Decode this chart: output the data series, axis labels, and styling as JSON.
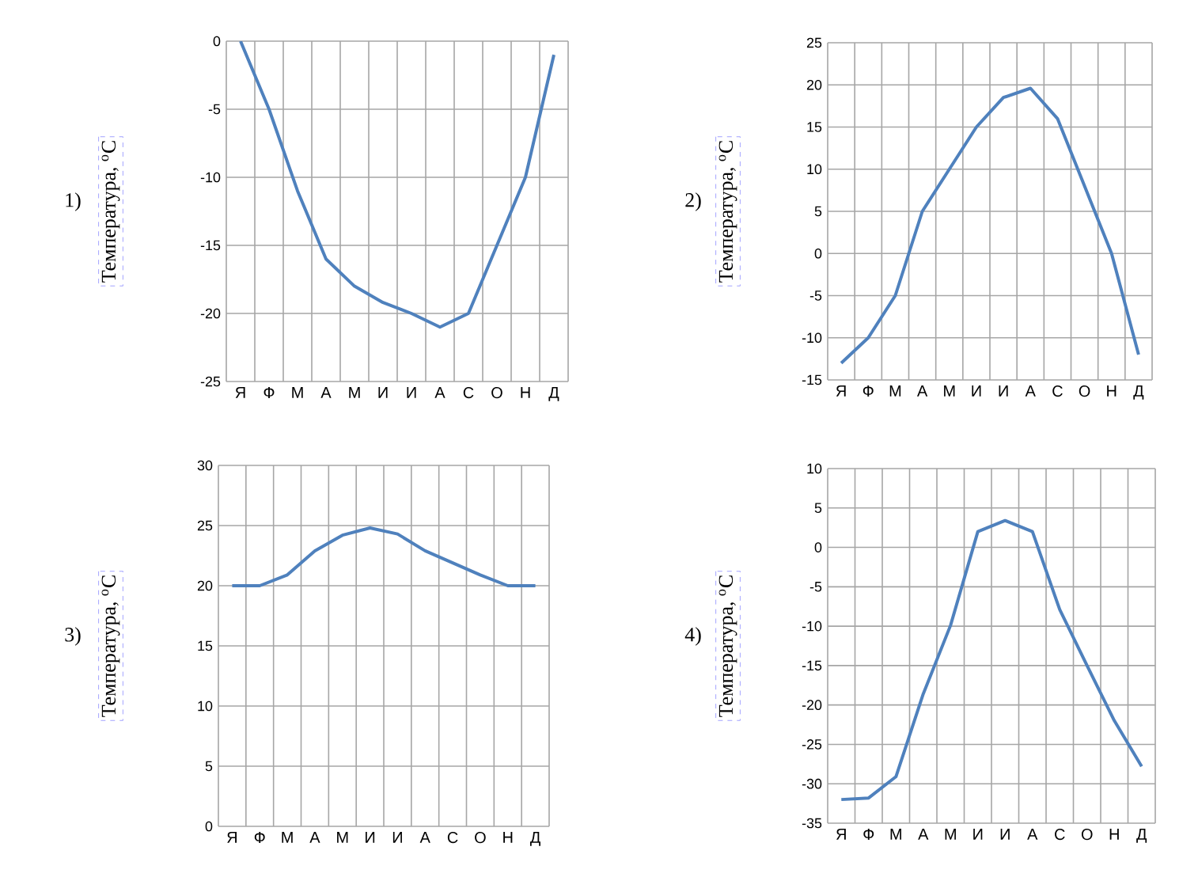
{
  "chart_data": [
    {
      "type": "line",
      "title": "1)",
      "ylabel": "Температура, $^{о}$С",
      "categories": [
        "Я",
        "Ф",
        "М",
        "А",
        "М",
        "И",
        "И",
        "А",
        "С",
        "О",
        "Н",
        "Д"
      ],
      "values": [
        0,
        -5,
        -11,
        -16,
        -18,
        -19.2,
        -20,
        -21,
        -20,
        -15,
        -10,
        -1
      ],
      "color": "#4f81bd",
      "ylim": [
        -25,
        0
      ],
      "yticks": [
        -25,
        -20,
        -15,
        -10,
        -5,
        0
      ],
      "grid": true
    },
    {
      "type": "line",
      "title": "2)",
      "ylabel": "Температура, $^{о}$С",
      "categories": [
        "Я",
        "Ф",
        "М",
        "А",
        "М",
        "И",
        "И",
        "А",
        "С",
        "О",
        "Н",
        "Д"
      ],
      "values": [
        -13,
        -10,
        -5,
        5,
        10,
        15,
        18.5,
        19.6,
        16,
        8,
        0,
        -12
      ],
      "color": "#4f81bd",
      "ylim": [
        -15,
        25
      ],
      "yticks": [
        -15,
        -10,
        -5,
        0,
        5,
        10,
        15,
        20,
        25
      ],
      "grid": true
    },
    {
      "type": "line",
      "title": "3)",
      "ylabel": "Температура, $^{о}$С",
      "categories": [
        "Я",
        "Ф",
        "М",
        "А",
        "М",
        "И",
        "И",
        "А",
        "С",
        "О",
        "Н",
        "Д"
      ],
      "values": [
        20,
        20,
        20.9,
        22.9,
        24.2,
        24.8,
        24.3,
        22.9,
        21.9,
        20.9,
        20,
        20
      ],
      "color": "#4f81bd",
      "ylim": [
        0,
        30
      ],
      "yticks": [
        0,
        5,
        10,
        15,
        20,
        25,
        30
      ],
      "grid": true
    },
    {
      "type": "line",
      "title": "4)",
      "ylabel": "Температура, $^{о}$С",
      "categories": [
        "Я",
        "Ф",
        "М",
        "А",
        "М",
        "И",
        "И",
        "А",
        "С",
        "О",
        "Н",
        "Д"
      ],
      "values": [
        -32,
        -31.8,
        -29.1,
        -18.6,
        -9.9,
        2,
        3.4,
        2,
        -7.9,
        -15,
        -22,
        -27.8
      ],
      "color": "#4f81bd",
      "ylim": [
        -35,
        10
      ],
      "yticks": [
        -35,
        -30,
        -25,
        -20,
        -15,
        -10,
        -5,
        0,
        5,
        10
      ],
      "grid": true
    }
  ]
}
